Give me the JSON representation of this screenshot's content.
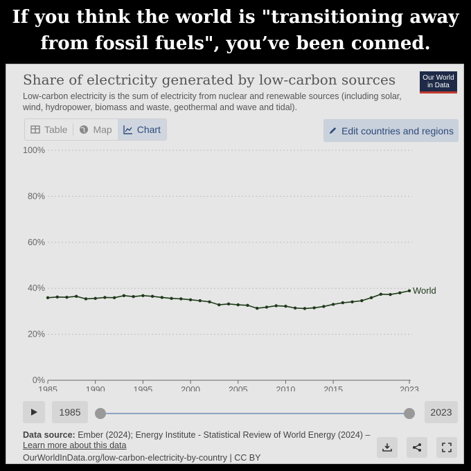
{
  "headline": {
    "line1": "If you think the world is \"transitioning away",
    "line2": "from fossil fuels\", you’ve been conned."
  },
  "card": {
    "title": "Share of electricity generated by low-carbon sources",
    "subtitle": "Low-carbon electricity is the sum of electricity from nuclear and renewable sources (including solar, wind, hydropower, biomass and waste, geothermal and wave and tidal).",
    "logo_line1": "Our World",
    "logo_line2": "in Data"
  },
  "tabs": [
    {
      "label": "Table",
      "icon": "table-icon"
    },
    {
      "label": "Map",
      "icon": "globe-icon"
    },
    {
      "label": "Chart",
      "icon": "line-chart-icon",
      "active": true
    }
  ],
  "edit_button": {
    "label": "Edit countries and regions",
    "icon": "pencil-icon"
  },
  "timeline": {
    "start": "1985",
    "end": "2023",
    "play_icon": "play-icon"
  },
  "footer": {
    "source_label": "Data source:",
    "source_text": "Ember (2024); Energy Institute - Statistical Review of World Energy (2024) –",
    "learn_more": "Learn more about this data",
    "url_line": "OurWorldInData.org/low-carbon-electricity-by-country | CC BY"
  },
  "actions": [
    {
      "name": "download-button",
      "icon": "download-icon"
    },
    {
      "name": "share-button",
      "icon": "share-icon"
    },
    {
      "name": "fullscreen-button",
      "icon": "fullscreen-icon"
    }
  ],
  "colors": {
    "series": "#1f3a1a",
    "grid": "#bdbdbd",
    "axis": "#666666"
  },
  "chart_data": {
    "type": "line",
    "title": "Share of electricity generated by low-carbon sources",
    "xlabel": "",
    "ylabel": "",
    "xlim": [
      1985,
      2023
    ],
    "ylim": [
      0,
      100
    ],
    "x_ticks": [
      1985,
      1990,
      1995,
      2000,
      2005,
      2010,
      2015,
      2023
    ],
    "y_ticks": [
      {
        "value": 0,
        "label": "0%"
      },
      {
        "value": 20,
        "label": "20%"
      },
      {
        "value": 40,
        "label": "40%"
      },
      {
        "value": 60,
        "label": "60%"
      },
      {
        "value": 80,
        "label": "80%"
      },
      {
        "value": 100,
        "label": "100%"
      }
    ],
    "grid": true,
    "series": [
      {
        "name": "World",
        "x": [
          1985,
          1986,
          1987,
          1988,
          1989,
          1990,
          1991,
          1992,
          1993,
          1994,
          1995,
          1996,
          1997,
          1998,
          1999,
          2000,
          2001,
          2002,
          2003,
          2004,
          2005,
          2006,
          2007,
          2008,
          2009,
          2010,
          2011,
          2012,
          2013,
          2014,
          2015,
          2016,
          2017,
          2018,
          2019,
          2020,
          2021,
          2022,
          2023
        ],
        "values": [
          35.9,
          36.2,
          36.1,
          36.5,
          35.4,
          35.6,
          36.0,
          35.9,
          36.8,
          36.4,
          36.8,
          36.5,
          36.0,
          35.6,
          35.4,
          35.0,
          34.6,
          34.1,
          32.8,
          33.2,
          32.8,
          32.6,
          31.3,
          31.8,
          32.4,
          32.2,
          31.4,
          31.2,
          31.5,
          32.1,
          33.0,
          33.7,
          34.1,
          34.6,
          35.9,
          37.4,
          37.3,
          38.0,
          38.9
        ]
      }
    ]
  }
}
